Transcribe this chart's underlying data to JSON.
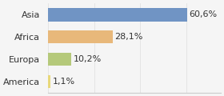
{
  "categories": [
    "America",
    "Europa",
    "Africa",
    "Asia"
  ],
  "values": [
    1.1,
    10.2,
    28.1,
    60.6
  ],
  "labels": [
    "1,1%",
    "10,2%",
    "28,1%",
    "60,6%"
  ],
  "bar_colors": [
    "#e8d87a",
    "#b5c97a",
    "#e8b87a",
    "#7094c4"
  ],
  "background_color": "#f5f5f5",
  "xlim": [
    0,
    75
  ],
  "label_fontsize": 8,
  "category_fontsize": 8
}
